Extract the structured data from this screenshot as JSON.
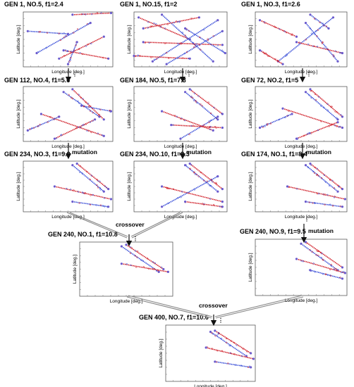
{
  "panels": [
    {
      "title": "GEN 1, NO.5, f1=2.4"
    },
    {
      "title": "GEN 1, NO.15, f1=2"
    },
    {
      "title": "GEN 1, NO.3, f1=2.6"
    },
    {
      "title": "GEN 112, NO.4, f1=5.6"
    },
    {
      "title": "GEN 184, NO.5, f1=7.3"
    },
    {
      "title": "GEN 72, NO.2, f1=5"
    },
    {
      "title": "GEN 234, NO.3, f1=9.9"
    },
    {
      "title": "GEN 234, NO.10, f1=9.3"
    },
    {
      "title": "GEN 174, NO.1, f1=8.4"
    },
    {
      "title": "GEN 240, NO.1, f1=10.8"
    },
    {
      "title": "GEN 240, NO.9, f1=9.5"
    },
    {
      "title": "GEN 400, NO.7, f1=10.6"
    }
  ],
  "axes": {
    "xlabel": "Longitude [deg.]",
    "ylabel": "Latitude [deg.]"
  },
  "operators": {
    "mutation": "mutation",
    "crossover": "crossover",
    "continuation": "⋮"
  },
  "colors": {
    "track_red": "#d0202a",
    "track_blue": "#3a4fd8",
    "marker": "#6a5acd",
    "frame": "#444444",
    "arrow": "#111111"
  }
}
